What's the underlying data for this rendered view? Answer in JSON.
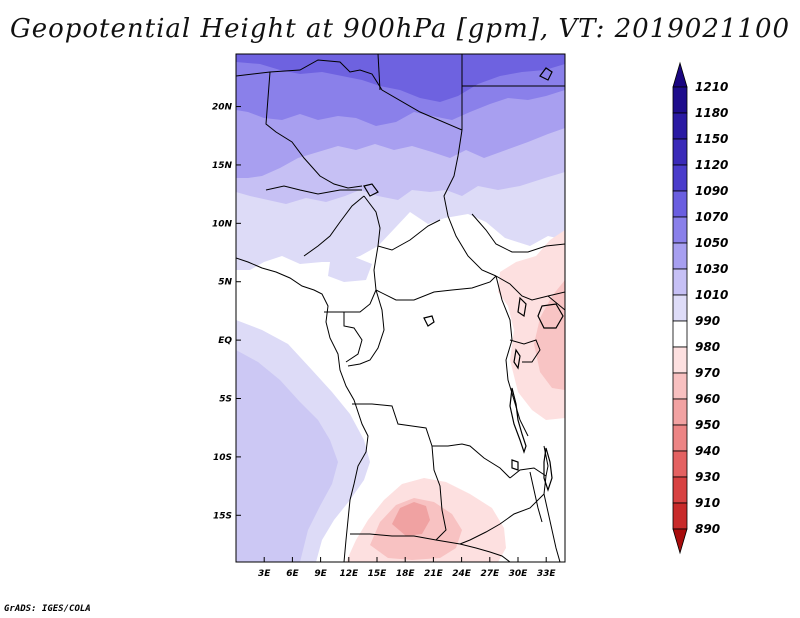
{
  "map": {
    "title": "Geopotential Height at 900hPa [gpm], VT: 2019021100",
    "credit": "GrADS: IGES/COLA",
    "region": "Central Africa",
    "lat_range": [
      -19,
      24.5
    ],
    "lon_range": [
      0,
      35
    ],
    "lat_ticks": [
      {
        "label": "20N",
        "value": 20
      },
      {
        "label": "15N",
        "value": 15
      },
      {
        "label": "10N",
        "value": 10
      },
      {
        "label": "5N",
        "value": 5
      },
      {
        "label": "EQ",
        "value": 0
      },
      {
        "label": "5S",
        "value": -5
      },
      {
        "label": "10S",
        "value": -10
      },
      {
        "label": "15S",
        "value": -15
      }
    ],
    "lon_ticks": [
      {
        "label": "3E",
        "value": 3
      },
      {
        "label": "6E",
        "value": 6
      },
      {
        "label": "9E",
        "value": 9
      },
      {
        "label": "12E",
        "value": 12
      },
      {
        "label": "15E",
        "value": 15
      },
      {
        "label": "18E",
        "value": 18
      },
      {
        "label": "21E",
        "value": 21
      },
      {
        "label": "24E",
        "value": 24
      },
      {
        "label": "27E",
        "value": 27
      },
      {
        "label": "30E",
        "value": 30
      },
      {
        "label": "33E",
        "value": 33
      }
    ],
    "colorbar": [
      {
        "label": "1210",
        "color": "#1e0d8c"
      },
      {
        "label": "1180",
        "color": "#2a1aa3"
      },
      {
        "label": "1150",
        "color": "#3a2ab8"
      },
      {
        "label": "1120",
        "color": "#4a3ccb"
      },
      {
        "label": "1090",
        "color": "#6a5ee0"
      },
      {
        "label": "1070",
        "color": "#8a80ea"
      },
      {
        "label": "1050",
        "color": "#a79ff0"
      },
      {
        "label": "1030",
        "color": "#c6c0f5"
      },
      {
        "label": "1010",
        "color": "#dedcf8"
      },
      {
        "label": "990",
        "color": "#ffffff"
      },
      {
        "label": "980",
        "color": "#fde0e0"
      },
      {
        "label": "970",
        "color": "#f8c0c0"
      },
      {
        "label": "960",
        "color": "#f2a2a2"
      },
      {
        "label": "950",
        "color": "#ec8484"
      },
      {
        "label": "940",
        "color": "#e46262"
      },
      {
        "label": "930",
        "color": "#d84242"
      },
      {
        "label": "910",
        "color": "#c82a2a"
      },
      {
        "label": "890",
        "color": "#b31414"
      }
    ],
    "colorbar_top_color": "#1a0680",
    "colorbar_bottom_color": "#a80c0c"
  }
}
